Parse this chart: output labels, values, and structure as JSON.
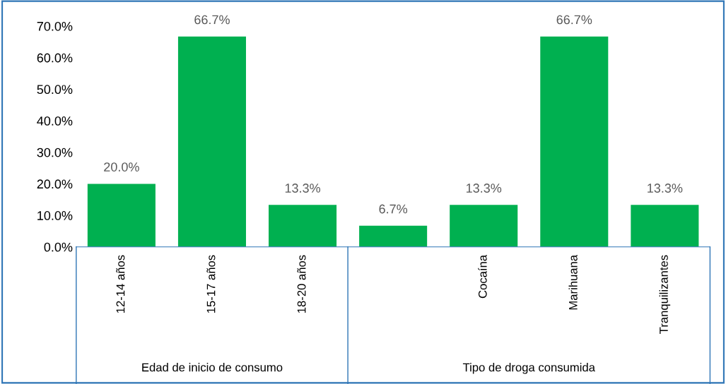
{
  "chart_data": {
    "type": "bar",
    "categories": [
      "12-14 años",
      "15-17 años",
      "18-20 años",
      null,
      "Cocaína",
      "Marihuana",
      "Tranquilizantes"
    ],
    "values": [
      20.0,
      66.7,
      13.3,
      6.7,
      13.3,
      66.7,
      13.3
    ],
    "value_labels": [
      "20.0%",
      "66.7%",
      "13.3%",
      "6.7%",
      "13.3%",
      "66.7%",
      "13.3%"
    ],
    "color": "#00b050",
    "ylim": [
      0,
      70
    ],
    "yticks": [
      {
        "value": 0,
        "label": "0.0%"
      },
      {
        "value": 10,
        "label": "10.0%"
      },
      {
        "value": 20,
        "label": "20.0%"
      },
      {
        "value": 30,
        "label": "30.0%"
      },
      {
        "value": 40,
        "label": "40.0%"
      },
      {
        "value": 50,
        "label": "50.0%"
      },
      {
        "value": 60,
        "label": "60.0%"
      },
      {
        "value": 70,
        "label": "70.0%"
      }
    ],
    "grid": false,
    "annotations": [
      "Edad de inicio de consumo",
      "Tipo de droga consumida"
    ]
  }
}
